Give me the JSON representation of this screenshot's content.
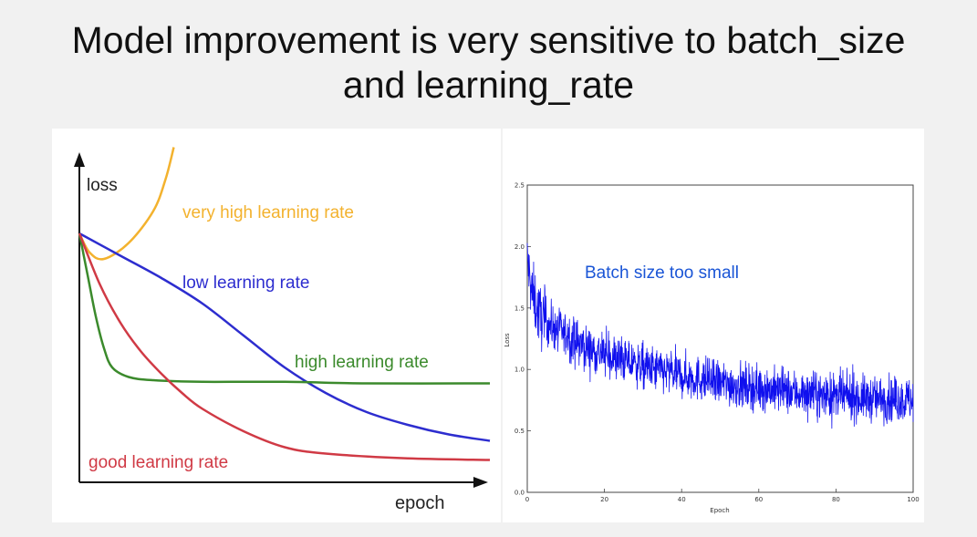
{
  "slide": {
    "title_line1": "Model improvement is very sensitive to batch_size",
    "title_line2": "and learning_rate"
  },
  "chart_data": [
    {
      "type": "line",
      "title": "",
      "xlabel": "epoch",
      "ylabel": "loss",
      "axis_ticks": false,
      "series": [
        {
          "name": "very high learning rate",
          "color": "#f3b22e",
          "trend": "drops briefly then rises sharply",
          "x": [
            0,
            0.025,
            0.06,
            0.12,
            0.18,
            0.21,
            0.23
          ],
          "y": [
            0.78,
            0.72,
            0.7,
            0.75,
            0.85,
            0.95,
            1.05
          ]
        },
        {
          "name": "low learning rate",
          "color": "#2d2dcf",
          "trend": "slow steady decrease",
          "x": [
            0,
            0.1,
            0.2,
            0.3,
            0.4,
            0.5,
            0.6,
            0.7,
            0.8,
            0.9,
            1.0
          ],
          "y": [
            0.78,
            0.71,
            0.64,
            0.56,
            0.46,
            0.36,
            0.28,
            0.22,
            0.18,
            0.15,
            0.13
          ]
        },
        {
          "name": "high learning rate",
          "color": "#3b8a2c",
          "trend": "fast drop then plateau",
          "x": [
            0,
            0.02,
            0.04,
            0.06,
            0.08,
            0.12,
            0.18,
            0.3,
            0.5,
            0.7,
            1.0
          ],
          "y": [
            0.78,
            0.65,
            0.52,
            0.42,
            0.36,
            0.33,
            0.32,
            0.315,
            0.315,
            0.31,
            0.31
          ]
        },
        {
          "name": "good learning rate",
          "color": "#d03a45",
          "trend": "fast smooth decrease to lowest loss",
          "x": [
            0,
            0.05,
            0.1,
            0.15,
            0.2,
            0.25,
            0.3,
            0.4,
            0.5,
            0.6,
            0.8,
            1.0
          ],
          "y": [
            0.78,
            0.62,
            0.5,
            0.41,
            0.34,
            0.28,
            0.23,
            0.16,
            0.11,
            0.09,
            0.075,
            0.07
          ]
        }
      ]
    },
    {
      "type": "line",
      "title": "",
      "annotation": "Batch size too small",
      "xlabel": "Epoch",
      "ylabel": "Loss",
      "xlim": [
        0,
        100
      ],
      "ylim": [
        0.0,
        2.5
      ],
      "xticks": [
        "0",
        "20",
        "40",
        "60",
        "80",
        "100"
      ],
      "yticks": [
        "0.0",
        "0.5",
        "1.0",
        "1.5",
        "2.0",
        "2.5"
      ],
      "series": [
        {
          "color": "#1010ee",
          "trend": "noisy decreasing loss",
          "x": [
            0,
            1,
            3,
            5,
            10,
            15,
            20,
            30,
            40,
            50,
            60,
            70,
            80,
            90,
            100
          ],
          "y": [
            1.9,
            1.65,
            1.45,
            1.38,
            1.28,
            1.18,
            1.12,
            1.02,
            0.95,
            0.89,
            0.85,
            0.81,
            0.78,
            0.76,
            0.75
          ],
          "noise": 0.09
        }
      ]
    }
  ]
}
